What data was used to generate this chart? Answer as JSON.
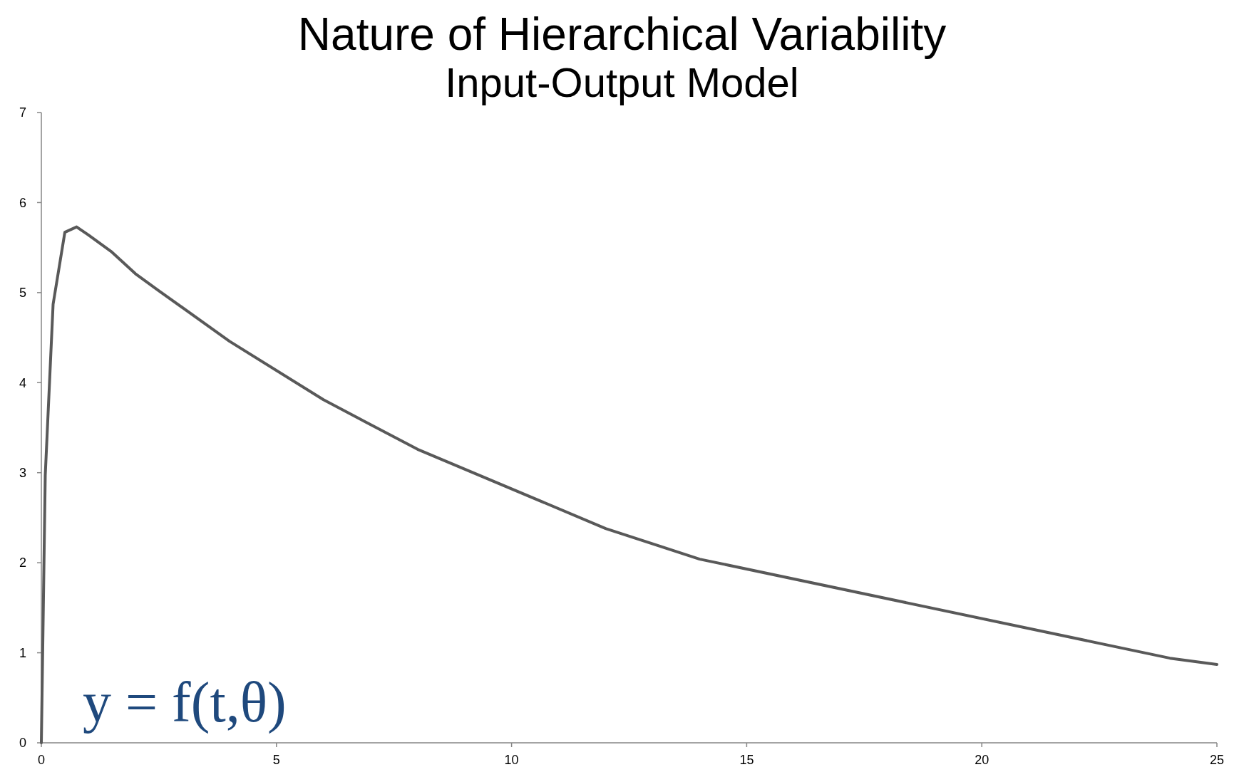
{
  "chart_data": {
    "type": "line",
    "title": "Nature of Hierarchical Variability",
    "subtitle": "Input-Output Model",
    "annotations": [
      "y = f(t,θ)"
    ],
    "x": [
      0,
      0.083,
      0.25,
      0.5,
      0.75,
      1,
      1.5,
      2,
      2.5,
      4,
      6,
      8,
      12,
      14,
      24,
      25
    ],
    "series": [
      {
        "color": "#595959",
        "values": [
          0,
          2.97,
          4.87,
          5.67,
          5.73,
          5.64,
          5.45,
          5.21,
          5.02,
          4.46,
          3.81,
          3.26,
          2.38,
          2.04,
          0.94,
          0.87
        ]
      }
    ],
    "xlim": [
      0,
      25
    ],
    "xticks": [
      0,
      5,
      10,
      15,
      20,
      25
    ],
    "ylim": [
      0,
      7
    ],
    "yticks": [
      0,
      1,
      2,
      3,
      4,
      5,
      6,
      7
    ],
    "marker": "none",
    "line_style": "solid"
  }
}
